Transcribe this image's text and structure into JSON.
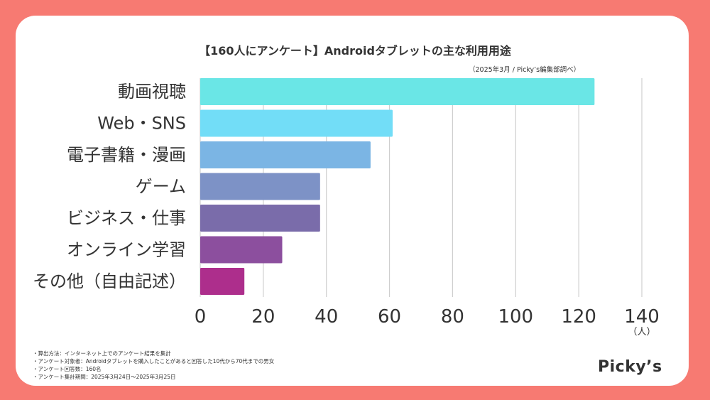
{
  "title": "【160人にアンケート】Androidタブレットの主な利用用途",
  "subtitle": "（2025年3月 / Picky’s編集部調べ）",
  "chart_data": {
    "type": "bar",
    "orientation": "horizontal",
    "categories": [
      "動画視聴",
      "Web・SNS",
      "電子書籍・漫画",
      "ゲーム",
      "ビジネス・仕事",
      "オンライン学習",
      "その他（自由記述）"
    ],
    "values": [
      125,
      61,
      54,
      38,
      38,
      26,
      14
    ],
    "xlim": [
      0,
      140
    ],
    "xticks": [
      "0",
      "20",
      "40",
      "60",
      "80",
      "100",
      "120",
      "140"
    ],
    "unit": "（人）",
    "grid": true,
    "colors": [
      "#6AE6E6",
      "#72DDF7",
      "#7BB5E4",
      "#7D92C6",
      "#7A6CAA",
      "#8C4F9E",
      "#AD2E8C"
    ]
  },
  "notes": [
    "・算出方法：インターネット上でのアンケート結果を集計",
    "・アンケート対象者：Androidタブレットを購入したことがあると回答した10代から70代までの男女",
    "・アンケート回答数：160名",
    "・アンケート集計期間：2025年3月24日〜2025年3月25日"
  ],
  "logo": "Picky’s"
}
